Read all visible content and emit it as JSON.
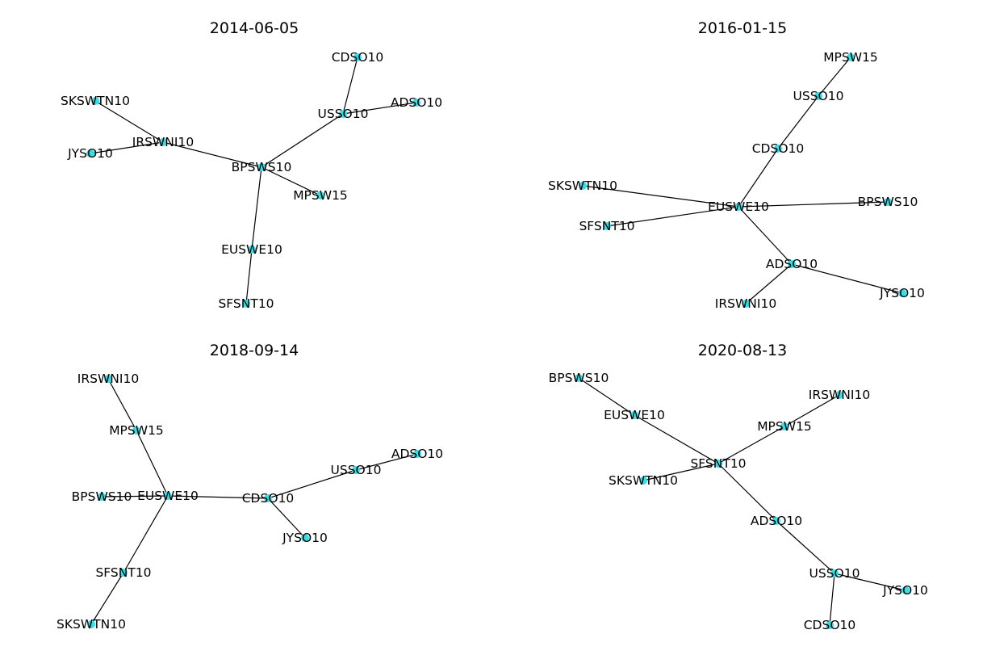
{
  "colors": {
    "node": "#33e0e8",
    "edge": "#000000",
    "text": "#000000"
  },
  "panels": [
    {
      "title": "2014-06-05",
      "nodes": [
        "CDSO10",
        "ADSO10",
        "USSO10",
        "SKSWTN10",
        "IRSWNI10",
        "JYSO10",
        "BPSWS10",
        "MPSW15",
        "EUSWE10",
        "SFSNT10"
      ],
      "edges": [
        [
          "CDSO10",
          "USSO10"
        ],
        [
          "ADSO10",
          "USSO10"
        ],
        [
          "USSO10",
          "BPSWS10"
        ],
        [
          "SKSWTN10",
          "IRSWNI10"
        ],
        [
          "IRSWNI10",
          "JYSO10"
        ],
        [
          "IRSWNI10",
          "BPSWS10"
        ],
        [
          "BPSWS10",
          "MPSW15"
        ],
        [
          "BPSWS10",
          "EUSWE10"
        ],
        [
          "EUSWE10",
          "SFSNT10"
        ]
      ]
    },
    {
      "title": "2016-01-15",
      "nodes": [
        "MPSW15",
        "USSO10",
        "CDSO10",
        "SKSWTN10",
        "EUSWE10",
        "BPSWS10",
        "SFSNT10",
        "ADSO10",
        "IRSWNI10",
        "JYSO10"
      ],
      "edges": [
        [
          "MPSW15",
          "USSO10"
        ],
        [
          "USSO10",
          "CDSO10"
        ],
        [
          "CDSO10",
          "EUSWE10"
        ],
        [
          "SKSWTN10",
          "EUSWE10"
        ],
        [
          "SFSNT10",
          "EUSWE10"
        ],
        [
          "EUSWE10",
          "BPSWS10"
        ],
        [
          "EUSWE10",
          "ADSO10"
        ],
        [
          "ADSO10",
          "IRSWNI10"
        ],
        [
          "ADSO10",
          "JYSO10"
        ]
      ]
    },
    {
      "title": "2018-09-14",
      "nodes": [
        "IRSWNI10",
        "MPSW15",
        "ADSO10",
        "USSO10",
        "BPSWS10",
        "EUSWE10",
        "CDSO10",
        "JYSO10",
        "SFSNT10",
        "SKSWTN10"
      ],
      "edges": [
        [
          "IRSWNI10",
          "MPSW15"
        ],
        [
          "MPSW15",
          "EUSWE10"
        ],
        [
          "BPSWS10",
          "EUSWE10"
        ],
        [
          "EUSWE10",
          "CDSO10"
        ],
        [
          "CDSO10",
          "USSO10"
        ],
        [
          "USSO10",
          "ADSO10"
        ],
        [
          "CDSO10",
          "JYSO10"
        ],
        [
          "EUSWE10",
          "SFSNT10"
        ],
        [
          "SFSNT10",
          "SKSWTN10"
        ]
      ]
    },
    {
      "title": "2020-08-13",
      "nodes": [
        "BPSWS10",
        "IRSWNI10",
        "EUSWE10",
        "MPSW15",
        "SFSNT10",
        "SKSWTN10",
        "ADSO10",
        "USSO10",
        "JYSO10",
        "CDSO10"
      ],
      "edges": [
        [
          "BPSWS10",
          "EUSWE10"
        ],
        [
          "EUSWE10",
          "SFSNT10"
        ],
        [
          "IRSWNI10",
          "MPSW15"
        ],
        [
          "MPSW15",
          "SFSNT10"
        ],
        [
          "SKSWTN10",
          "SFSNT10"
        ],
        [
          "SFSNT10",
          "ADSO10"
        ],
        [
          "ADSO10",
          "USSO10"
        ],
        [
          "USSO10",
          "JYSO10"
        ],
        [
          "USSO10",
          "CDSO10"
        ]
      ]
    }
  ]
}
